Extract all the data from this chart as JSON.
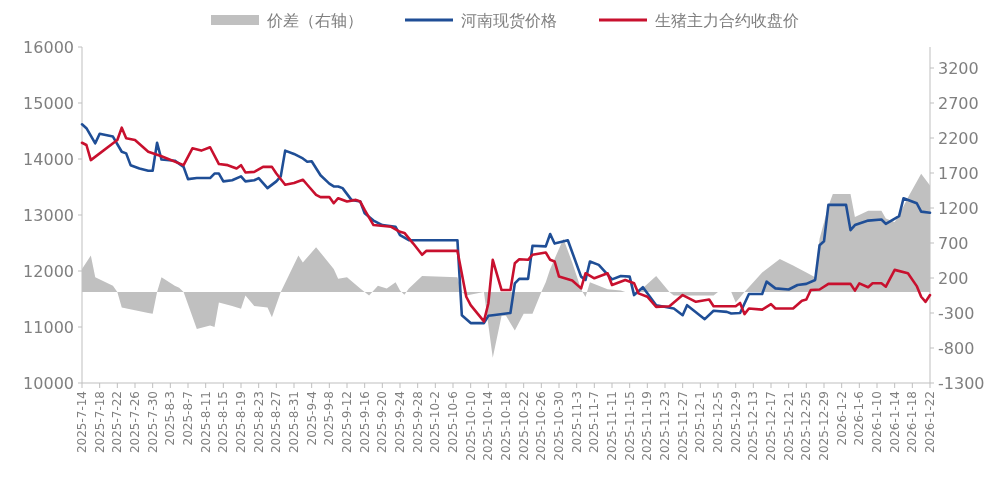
{
  "chart_data": {
    "type": "line",
    "legend": "top",
    "xlim": [
      "2025-07-14",
      "2026-01-22"
    ],
    "xticks": [
      {
        "value": "2025-07-14",
        "label": "2025-7-14"
      },
      {
        "value": "2025-07-18",
        "label": "2025-7-18"
      },
      {
        "value": "2025-07-22",
        "label": "2025-7-22"
      },
      {
        "value": "2025-07-26",
        "label": "2025-7-26"
      },
      {
        "value": "2025-07-30",
        "label": "2025-7-30"
      },
      {
        "value": "2025-08-03",
        "label": "2025-8-3"
      },
      {
        "value": "2025-08-07",
        "label": "2025-8-7"
      },
      {
        "value": "2025-08-11",
        "label": "2025-8-11"
      },
      {
        "value": "2025-08-15",
        "label": "2025-8-15"
      },
      {
        "value": "2025-08-19",
        "label": "2025-8-19"
      },
      {
        "value": "2025-08-23",
        "label": "2025-8-23"
      },
      {
        "value": "2025-08-27",
        "label": "2025-8-27"
      },
      {
        "value": "2025-08-31",
        "label": "2025-8-31"
      },
      {
        "value": "2025-09-04",
        "label": "2025-9-4"
      },
      {
        "value": "2025-09-08",
        "label": "2025-9-8"
      },
      {
        "value": "2025-09-12",
        "label": "2025-9-12"
      },
      {
        "value": "2025-09-16",
        "label": "2025-9-16"
      },
      {
        "value": "2025-09-20",
        "label": "2025-9-20"
      },
      {
        "value": "2025-09-24",
        "label": "2025-9-24"
      },
      {
        "value": "2025-09-28",
        "label": "2025-9-28"
      },
      {
        "value": "2025-10-02",
        "label": "2025-10-2"
      },
      {
        "value": "2025-10-06",
        "label": "2025-10-6"
      },
      {
        "value": "2025-10-10",
        "label": "2025-10-10"
      },
      {
        "value": "2025-10-14",
        "label": "2025-10-14"
      },
      {
        "value": "2025-10-18",
        "label": "2025-10-18"
      },
      {
        "value": "2025-10-22",
        "label": "2025-10-22"
      },
      {
        "value": "2025-10-26",
        "label": "2025-10-26"
      },
      {
        "value": "2025-10-30",
        "label": "2025-10-30"
      },
      {
        "value": "2025-11-03",
        "label": "2025-11-3"
      },
      {
        "value": "2025-11-07",
        "label": "2025-11-7"
      },
      {
        "value": "2025-11-11",
        "label": "2025-11-11"
      },
      {
        "value": "2025-11-15",
        "label": "2025-11-15"
      },
      {
        "value": "2025-11-19",
        "label": "2025-11-19"
      },
      {
        "value": "2025-11-23",
        "label": "2025-11-23"
      },
      {
        "value": "2025-11-27",
        "label": "2025-11-27"
      },
      {
        "value": "2025-12-01",
        "label": "2025-12-1"
      },
      {
        "value": "2025-12-05",
        "label": "2025-12-5"
      },
      {
        "value": "2025-12-09",
        "label": "2025-12-9"
      },
      {
        "value": "2025-12-13",
        "label": "2025-12-13"
      },
      {
        "value": "2025-12-17",
        "label": "2025-12-17"
      },
      {
        "value": "2025-12-21",
        "label": "2025-12-21"
      },
      {
        "value": "2025-12-25",
        "label": "2025-12-25"
      },
      {
        "value": "2025-12-29",
        "label": "2025-12-29"
      },
      {
        "value": "2026-01-02",
        "label": "2026-1-2"
      },
      {
        "value": "2026-01-06",
        "label": "2026-1-6"
      },
      {
        "value": "2026-01-10",
        "label": "2026-1-10"
      },
      {
        "value": "2026-01-14",
        "label": "2026-1-14"
      },
      {
        "value": "2026-01-18",
        "label": "2026-1-18"
      },
      {
        "value": "2026-01-22",
        "label": "2026-1-22"
      }
    ],
    "ylim": [
      10000,
      16000
    ],
    "yticks": [
      10000,
      11000,
      12000,
      13000,
      14000,
      15000,
      16000
    ],
    "y2lim": [
      -1300,
      3500
    ],
    "y2ticks": [
      -1300,
      -800,
      -300,
      200,
      700,
      1200,
      1700,
      2200,
      2700,
      3200
    ],
    "series": [
      {
        "name": "价差（右轴）",
        "type": "area",
        "axis": "y2",
        "color": "#c0c0c0",
        "x": [
          "2025-07-14",
          "2025-07-16",
          "2025-07-17",
          "2025-07-21",
          "2025-07-22",
          "2025-07-23",
          "2025-07-26",
          "2025-07-29",
          "2025-07-30",
          "2025-07-31",
          "2025-08-01",
          "2025-08-04",
          "2025-08-05",
          "2025-08-06",
          "2025-08-09",
          "2025-08-12",
          "2025-08-13",
          "2025-08-14",
          "2025-08-17",
          "2025-08-19",
          "2025-08-20",
          "2025-08-22",
          "2025-08-25",
          "2025-08-26",
          "2025-08-28",
          "2025-09-01",
          "2025-09-02",
          "2025-09-05",
          "2025-09-09",
          "2025-09-10",
          "2025-09-12",
          "2025-09-15",
          "2025-09-17",
          "2025-09-19",
          "2025-09-21",
          "2025-09-23",
          "2025-09-24",
          "2025-09-25",
          "2025-09-26",
          "2025-09-29",
          "2025-10-07",
          "2025-10-08",
          "2025-10-09",
          "2025-10-13",
          "2025-10-15",
          "2025-10-17",
          "2025-10-18",
          "2025-10-20",
          "2025-10-22",
          "2025-10-24",
          "2025-10-26",
          "2025-10-27",
          "2025-10-28",
          "2025-10-31",
          "2025-11-02",
          "2025-11-04",
          "2025-11-05",
          "2025-11-06",
          "2025-11-10",
          "2025-11-13",
          "2025-11-14",
          "2025-11-17",
          "2025-11-21",
          "2025-11-24",
          "2025-11-25",
          "2025-12-04",
          "2025-12-05",
          "2025-12-08",
          "2025-12-09",
          "2025-12-11",
          "2025-12-13",
          "2025-12-15",
          "2025-12-19",
          "2025-12-22",
          "2025-12-25",
          "2025-12-27",
          "2025-12-28",
          "2025-12-30",
          "2025-12-31",
          "2026-01-04",
          "2026-01-05",
          "2026-01-08",
          "2026-01-11",
          "2026-01-12",
          "2026-01-14",
          "2026-01-15",
          "2026-01-17",
          "2026-01-20",
          "2026-01-22"
        ],
        "values": [
          330,
          520,
          210,
          90,
          0,
          -220,
          -260,
          -300,
          -310,
          0,
          210,
          90,
          60,
          0,
          -530,
          -480,
          -500,
          -150,
          -200,
          -240,
          -50,
          -200,
          -220,
          -360,
          0,
          520,
          420,
          640,
          330,
          190,
          210,
          50,
          -50,
          90,
          50,
          140,
          20,
          -40,
          50,
          230,
          210,
          0,
          -50,
          0,
          -940,
          -340,
          -340,
          -550,
          -310,
          -310,
          0,
          140,
          330,
          760,
          420,
          40,
          -70,
          140,
          40,
          20,
          0,
          0,
          230,
          0,
          -50,
          -50,
          0,
          0,
          -150,
          0,
          140,
          280,
          470,
          380,
          280,
          210,
          760,
          1230,
          1400,
          1400,
          1070,
          1160,
          1160,
          1050,
          1000,
          1100,
          1350,
          1690,
          1520
        ]
      },
      {
        "name": "河南现货价格",
        "type": "line",
        "color": "#1f4e96",
        "x": [
          "2025-07-14",
          "2025-07-15",
          "2025-07-17",
          "2025-07-18",
          "2025-07-21",
          "2025-07-23",
          "2025-07-24",
          "2025-07-25",
          "2025-07-27",
          "2025-07-29",
          "2025-07-30",
          "2025-07-31",
          "2025-08-01",
          "2025-08-04",
          "2025-08-06",
          "2025-08-07",
          "2025-08-09",
          "2025-08-12",
          "2025-08-13",
          "2025-08-14",
          "2025-08-15",
          "2025-08-17",
          "2025-08-19",
          "2025-08-20",
          "2025-08-22",
          "2025-08-23",
          "2025-08-25",
          "2025-08-27",
          "2025-08-28",
          "2025-08-29",
          "2025-08-31",
          "2025-09-02",
          "2025-09-03",
          "2025-09-04",
          "2025-09-06",
          "2025-09-08",
          "2025-09-09",
          "2025-09-10",
          "2025-09-11",
          "2025-09-13",
          "2025-09-15",
          "2025-09-16",
          "2025-09-18",
          "2025-09-20",
          "2025-09-23",
          "2025-09-24",
          "2025-09-26",
          "2025-10-07",
          "2025-10-08",
          "2025-10-10",
          "2025-10-13",
          "2025-10-14",
          "2025-10-15",
          "2025-10-19",
          "2025-10-20",
          "2025-10-21",
          "2025-10-23",
          "2025-10-24",
          "2025-10-27",
          "2025-10-28",
          "2025-10-29",
          "2025-11-01",
          "2025-11-04",
          "2025-11-05",
          "2025-11-06",
          "2025-11-08",
          "2025-11-11",
          "2025-11-13",
          "2025-11-15",
          "2025-11-16",
          "2025-11-18",
          "2025-11-21",
          "2025-11-25",
          "2025-11-27",
          "2025-11-28",
          "2025-12-02",
          "2025-12-04",
          "2025-12-07",
          "2025-12-08",
          "2025-12-10",
          "2025-12-12",
          "2025-12-15",
          "2025-12-16",
          "2025-12-18",
          "2025-12-21",
          "2025-12-23",
          "2025-12-25",
          "2025-12-27",
          "2025-12-28",
          "2025-12-29",
          "2025-12-30",
          "2026-01-03",
          "2026-01-04",
          "2026-01-05",
          "2026-01-08",
          "2026-01-11",
          "2026-01-12",
          "2026-01-15",
          "2026-01-16",
          "2026-01-19",
          "2026-01-20",
          "2026-01-22"
        ],
        "values": [
          14620,
          14550,
          14280,
          14450,
          14400,
          14130,
          14100,
          13890,
          13830,
          13790,
          13790,
          14290,
          13990,
          13970,
          13860,
          13640,
          13660,
          13660,
          13740,
          13740,
          13600,
          13620,
          13690,
          13600,
          13620,
          13660,
          13480,
          13600,
          13690,
          14150,
          14090,
          14010,
          13950,
          13960,
          13710,
          13560,
          13510,
          13510,
          13480,
          13270,
          13240,
          13030,
          12900,
          12820,
          12790,
          12640,
          12550,
          12550,
          11210,
          11070,
          11070,
          11200,
          11210,
          11250,
          11780,
          11860,
          11860,
          12450,
          12440,
          12660,
          12490,
          12550,
          11900,
          11840,
          12170,
          12110,
          11850,
          11910,
          11900,
          11570,
          11710,
          11390,
          11330,
          11210,
          11390,
          11140,
          11290,
          11270,
          11240,
          11250,
          11590,
          11590,
          11810,
          11690,
          11670,
          11750,
          11770,
          11840,
          12460,
          12530,
          13180,
          13180,
          12730,
          12820,
          12900,
          12920,
          12840,
          12980,
          13300,
          13210,
          13060,
          13040
        ]
      },
      {
        "name": "生猪主力合约收盘价",
        "type": "line",
        "color": "#c8102e",
        "x": [
          "2025-07-14",
          "2025-07-15",
          "2025-07-16",
          "2025-07-22",
          "2025-07-23",
          "2025-07-24",
          "2025-07-26",
          "2025-07-29",
          "2025-08-01",
          "2025-08-06",
          "2025-08-08",
          "2025-08-10",
          "2025-08-12",
          "2025-08-14",
          "2025-08-16",
          "2025-08-18",
          "2025-08-19",
          "2025-08-20",
          "2025-08-22",
          "2025-08-24",
          "2025-08-26",
          "2025-08-27",
          "2025-08-29",
          "2025-08-31",
          "2025-09-02",
          "2025-09-03",
          "2025-09-05",
          "2025-09-06",
          "2025-09-08",
          "2025-09-09",
          "2025-09-10",
          "2025-09-12",
          "2025-09-14",
          "2025-09-15",
          "2025-09-16",
          "2025-09-18",
          "2025-09-22",
          "2025-09-24",
          "2025-09-25",
          "2025-09-27",
          "2025-09-29",
          "2025-09-30",
          "2025-10-07",
          "2025-10-09",
          "2025-10-10",
          "2025-10-13",
          "2025-10-14",
          "2025-10-15",
          "2025-10-17",
          "2025-10-19",
          "2025-10-20",
          "2025-10-21",
          "2025-10-23",
          "2025-10-24",
          "2025-10-27",
          "2025-10-28",
          "2025-10-29",
          "2025-10-30",
          "2025-11-02",
          "2025-11-04",
          "2025-11-05",
          "2025-11-07",
          "2025-11-10",
          "2025-11-11",
          "2025-11-14",
          "2025-11-16",
          "2025-11-17",
          "2025-11-19",
          "2025-11-21",
          "2025-11-24",
          "2025-11-27",
          "2025-11-30",
          "2025-12-03",
          "2025-12-04",
          "2025-12-09",
          "2025-12-10",
          "2025-12-11",
          "2025-12-12",
          "2025-12-15",
          "2025-12-17",
          "2025-12-18",
          "2025-12-22",
          "2025-12-24",
          "2025-12-25",
          "2025-12-26",
          "2025-12-28",
          "2025-12-30",
          "2026-01-04",
          "2026-01-05",
          "2026-01-06",
          "2026-01-08",
          "2026-01-09",
          "2026-01-11",
          "2026-01-12",
          "2026-01-14",
          "2026-01-17",
          "2026-01-19",
          "2026-01-20",
          "2026-01-21",
          "2026-01-22"
        ],
        "values": [
          14290,
          14250,
          13980,
          14340,
          14560,
          14370,
          14340,
          14130,
          14050,
          13890,
          14190,
          14150,
          14210,
          13910,
          13890,
          13830,
          13890,
          13760,
          13770,
          13860,
          13860,
          13740,
          13540,
          13570,
          13630,
          13540,
          13360,
          13320,
          13320,
          13210,
          13300,
          13240,
          13270,
          13240,
          13090,
          12820,
          12790,
          12700,
          12680,
          12490,
          12290,
          12360,
          12360,
          11540,
          11390,
          11100,
          11420,
          12200,
          11660,
          11660,
          12140,
          12210,
          12200,
          12290,
          12330,
          12200,
          12170,
          11900,
          11830,
          11690,
          11960,
          11870,
          11960,
          11750,
          11840,
          11780,
          11600,
          11540,
          11360,
          11370,
          11570,
          11450,
          11490,
          11370,
          11370,
          11430,
          11230,
          11330,
          11310,
          11410,
          11330,
          11330,
          11470,
          11490,
          11660,
          11670,
          11770,
          11770,
          11650,
          11780,
          11710,
          11780,
          11780,
          11720,
          12020,
          11960,
          11730,
          11540,
          11450,
          11570
        ]
      }
    ]
  }
}
